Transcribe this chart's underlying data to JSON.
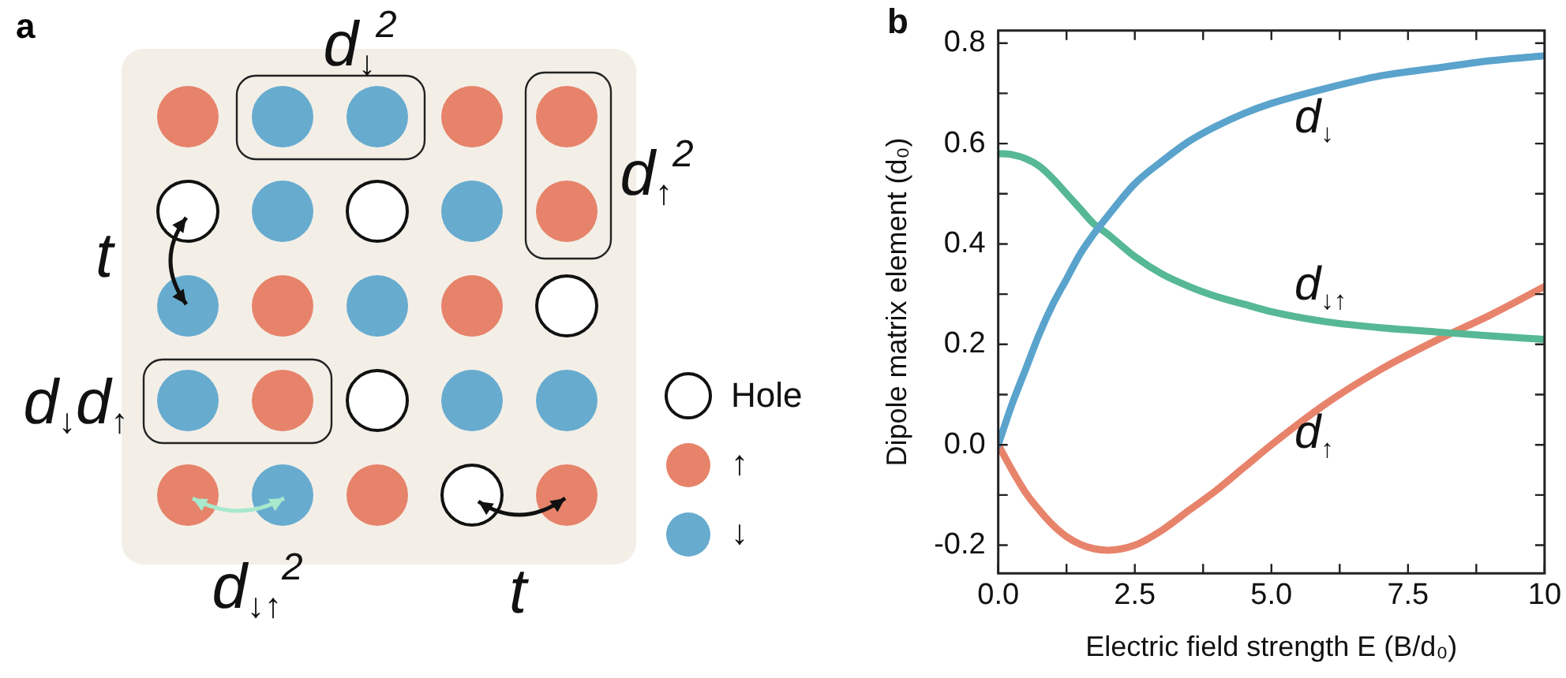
{
  "chart_data": [
    {
      "type": "other",
      "title": "a",
      "annotations": [
        "d$_{↓}$$^{2}$",
        "d$_{↑}$$^{2}$",
        "t",
        "d$_{↓}$d$_{↑}$",
        "d$_{↓↑}$$^{2}$",
        "t",
        "Hole",
        "↑",
        "↓"
      ]
    },
    {
      "type": "line",
      "title": "b",
      "xlabel": "Electric field strength E (B/d₀)",
      "ylabel": "Dipole matrix element (d₀)",
      "x": [
        0,
        0.25,
        0.5,
        0.75,
        1,
        1.25,
        1.5,
        1.75,
        2,
        2.5,
        3,
        3.5,
        4,
        4.5,
        5,
        6,
        7,
        8,
        9,
        10
      ],
      "series": [
        {
          "name": "d$_{↓}$",
          "color": "#5aa3cc",
          "values": [
            0,
            0.08,
            0.15,
            0.22,
            0.28,
            0.33,
            0.38,
            0.42,
            0.455,
            0.52,
            0.565,
            0.605,
            0.635,
            0.66,
            0.68,
            0.71,
            0.735,
            0.75,
            0.765,
            0.775
          ]
        },
        {
          "name": "d$_{↓↑}$",
          "color": "#56b894",
          "values": [
            0.58,
            0.578,
            0.57,
            0.555,
            0.53,
            0.5,
            0.47,
            0.44,
            0.42,
            0.375,
            0.34,
            0.315,
            0.295,
            0.28,
            0.265,
            0.245,
            0.233,
            0.225,
            0.217,
            0.21
          ]
        },
        {
          "name": "d$_{↑}$",
          "color": "#e8836b",
          "values": [
            0,
            -0.05,
            -0.095,
            -0.13,
            -0.16,
            -0.183,
            -0.198,
            -0.207,
            -0.21,
            -0.2,
            -0.17,
            -0.13,
            -0.09,
            -0.045,
            0,
            0.082,
            0.15,
            0.207,
            0.258,
            0.315
          ]
        }
      ],
      "xlim": [
        0,
        10
      ],
      "xticks": [
        {
          "value": 0,
          "label": "0.0"
        },
        {
          "value": 1.25,
          "label": null
        },
        2.5,
        {
          "value": 3.75,
          "label": null
        },
        {
          "value": 5,
          "label": "5.0"
        },
        {
          "value": 6.25,
          "label": null
        },
        7.5,
        {
          "value": 8.75,
          "label": null
        },
        10
      ],
      "ylim": [
        -0.256,
        0.825
      ],
      "yticks": [
        -0.2,
        {
          "value": -0.1,
          "label": null
        },
        {
          "value": 0,
          "label": "0.0"
        },
        {
          "value": 0.1,
          "label": null
        },
        0.2,
        {
          "value": 0.3,
          "label": null
        },
        0.4,
        {
          "value": 0.5,
          "label": null
        },
        0.6,
        {
          "value": 0.7,
          "label": null
        },
        0.8
      ],
      "grid": false,
      "legend": false,
      "marker": "none",
      "line_style": "solid"
    }
  ]
}
